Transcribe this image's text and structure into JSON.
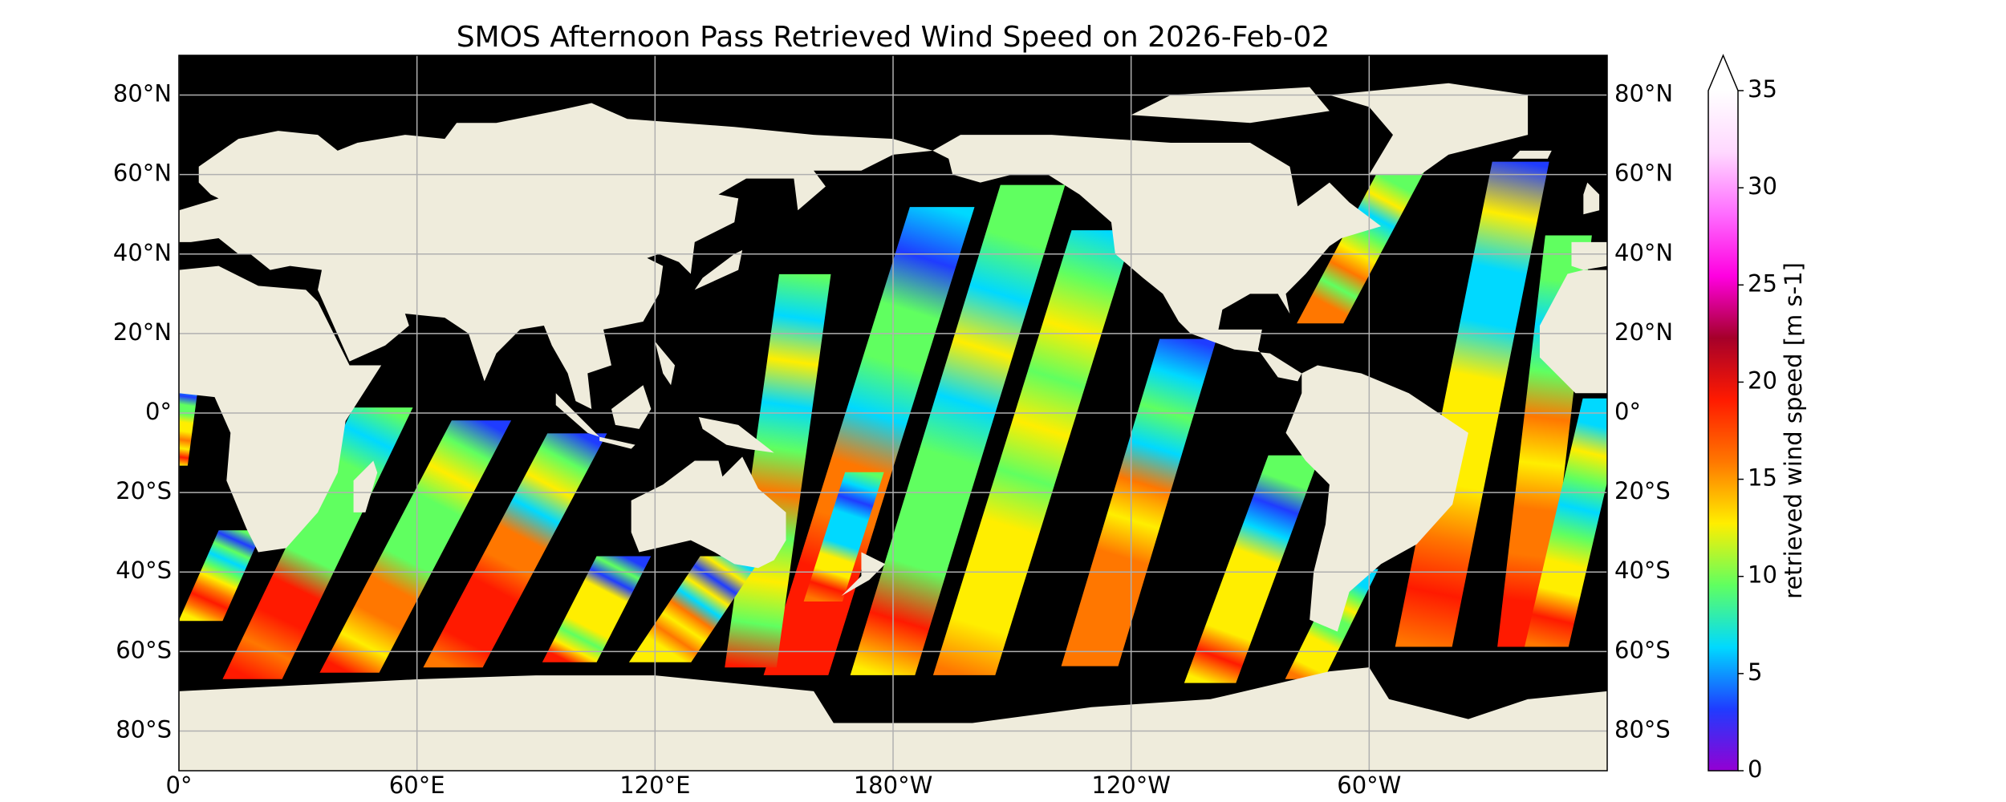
{
  "title": "SMOS Afternoon Pass Retrieved Wind Speed on 2026-Feb-02",
  "map": {
    "xlim": [
      0,
      360
    ],
    "ylim": [
      -90,
      90
    ],
    "grid": true,
    "land_color": "#efecdc",
    "ocean_color": "#000000",
    "lon_ticks": [
      {
        "value": 0,
        "label": "0°"
      },
      {
        "value": 60,
        "label": "60°E"
      },
      {
        "value": 120,
        "label": "120°E"
      },
      {
        "value": 180,
        "label": "180°W"
      },
      {
        "value": 240,
        "label": "120°W"
      },
      {
        "value": 300,
        "label": "60°W"
      }
    ],
    "lat_ticks": [
      {
        "value": 80,
        "label": "80°N"
      },
      {
        "value": 60,
        "label": "60°N"
      },
      {
        "value": 40,
        "label": "40°N"
      },
      {
        "value": 20,
        "label": "20°N"
      },
      {
        "value": 0,
        "label": "0°"
      },
      {
        "value": -20,
        "label": "20°S"
      },
      {
        "value": -40,
        "label": "40°S"
      },
      {
        "value": -60,
        "label": "60°S"
      },
      {
        "value": -80,
        "label": "80°S"
      }
    ]
  },
  "colorbar": {
    "label": "retrieved wind speed [m s-1]",
    "lim": [
      0,
      35
    ],
    "ticks": [
      0,
      5,
      10,
      15,
      20,
      25,
      30,
      35
    ],
    "colormap": [
      "#9400d3",
      "#1f3cff",
      "#00d9ff",
      "#60ff60",
      "#ffee00",
      "#ff7700",
      "#ff1a00",
      "#a5002a",
      "#ff00e0",
      "#ff6cff",
      "#ffd8ff",
      "#ffffff"
    ]
  }
}
